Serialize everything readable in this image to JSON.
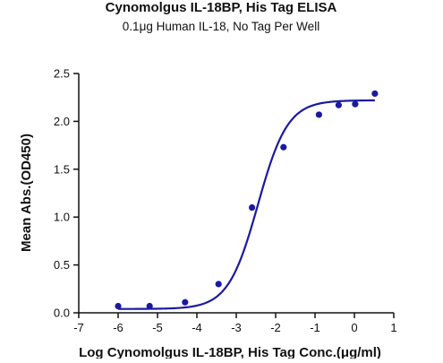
{
  "chart_data": {
    "type": "scatter",
    "title": "Cynomolgus IL-18BP, His Tag ELISA",
    "subtitle": "0.1μg Human IL-18, No Tag Per Well",
    "xlabel": "Log Cynomolgus IL-18BP, His Tag Conc.(μg/ml)",
    "ylabel": "Mean Abs.(OD450)",
    "xlim": [
      -7,
      1
    ],
    "ylim": [
      0,
      2.5
    ],
    "x_ticks": [
      -7,
      -6,
      -5,
      -4,
      -3,
      -2,
      -1,
      0,
      1
    ],
    "y_ticks": [
      0.0,
      0.5,
      1.0,
      1.5,
      2.0,
      2.5
    ],
    "x_tick_labels": [
      "-7",
      "-6",
      "-5",
      "-4",
      "-3",
      "-2",
      "-1",
      "0",
      "1"
    ],
    "y_tick_labels": [
      "0.0",
      "0.5",
      "1.0",
      "1.5",
      "2.0",
      "2.5"
    ],
    "grid": false,
    "color": "#1a1aa0",
    "series": [
      {
        "points": [
          {
            "x": -6.0,
            "y": 0.07
          },
          {
            "x": -5.2,
            "y": 0.07
          },
          {
            "x": -4.3,
            "y": 0.11
          },
          {
            "x": -3.45,
            "y": 0.3
          },
          {
            "x": -2.6,
            "y": 1.1
          },
          {
            "x": -1.8,
            "y": 1.73
          },
          {
            "x": -0.9,
            "y": 2.07
          },
          {
            "x": -0.4,
            "y": 2.17
          },
          {
            "x": 0.02,
            "y": 2.18
          },
          {
            "x": 0.52,
            "y": 2.29
          }
        ],
        "fit": {
          "model": "4PL",
          "bottom": 0.04,
          "top": 2.22,
          "log_ec50": -2.45,
          "hill_slope": 1.15,
          "x_range": [
            -6.0,
            0.52
          ]
        }
      }
    ]
  }
}
